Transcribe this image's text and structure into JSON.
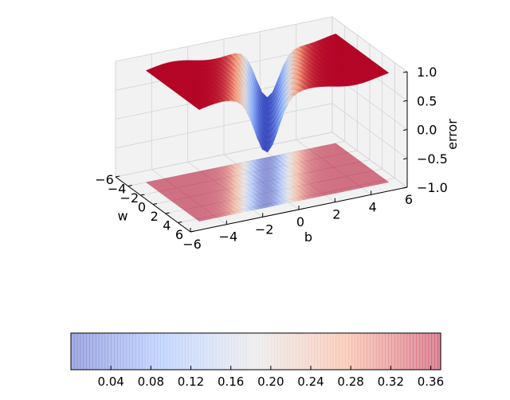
{
  "chart_data": {
    "type": "surface3d",
    "xlabel": "w",
    "ylabel": "b",
    "zlabel": "error",
    "x_ticks": [
      -6,
      -4,
      -2,
      0,
      2,
      4,
      6
    ],
    "y_ticks": [
      -6,
      -4,
      -2,
      0,
      2,
      4,
      6
    ],
    "z_ticks": [
      -1.0,
      -0.5,
      0.0,
      0.5,
      1.0
    ],
    "xlim": [
      -6,
      6
    ],
    "ylim": [
      -6,
      6
    ],
    "zlim": [
      -1.0,
      1.0
    ],
    "x_tick_labels": [
      "−6",
      "−4",
      "−2",
      "0",
      "2",
      "4",
      "6"
    ],
    "y_tick_labels": [
      "−6",
      "−4",
      "−2",
      "0",
      "2",
      "4",
      "6"
    ],
    "z_tick_labels": [
      "−1.0",
      "−0.5",
      "0.0",
      "0.5",
      "1.0"
    ],
    "grid": true,
    "contour_offset": -1.0,
    "colormap": "coolwarm",
    "colorbar": {
      "orientation": "horizontal",
      "range": [
        0.0,
        0.37
      ],
      "ticks": [
        0.04,
        0.08,
        0.12,
        0.16,
        0.2,
        0.24,
        0.28,
        0.32,
        0.36
      ],
      "tick_labels": [
        "0.04",
        "0.08",
        "0.12",
        "0.16",
        "0.20",
        "0.24",
        "0.28",
        "0.32",
        "0.36"
      ]
    },
    "colors": {
      "low": "#3b4cc0",
      "mid": "#dddddd",
      "high": "#b40426",
      "pane": "#f2f2f2"
    }
  }
}
